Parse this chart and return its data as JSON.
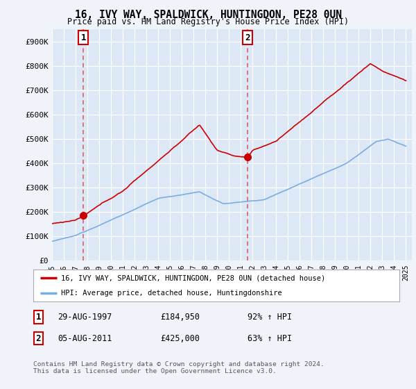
{
  "title": "16, IVY WAY, SPALDWICK, HUNTINGDON, PE28 0UN",
  "subtitle": "Price paid vs. HM Land Registry's House Price Index (HPI)",
  "background_color": "#f0f4fa",
  "plot_bg_color": "#dce8f5",
  "grid_color": "#ffffff",
  "ylim": [
    0,
    950000
  ],
  "yticks": [
    0,
    100000,
    200000,
    300000,
    400000,
    500000,
    600000,
    700000,
    800000,
    900000
  ],
  "ytick_labels": [
    "£0",
    "£100K",
    "£200K",
    "£300K",
    "£400K",
    "£500K",
    "£600K",
    "£700K",
    "£800K",
    "£900K"
  ],
  "sale1_year": 1997.66,
  "sale1_price": 184950,
  "sale2_year": 2011.59,
  "sale2_price": 425000,
  "sale1_label": "29-AUG-1997",
  "sale1_amount": "£184,950",
  "sale1_pct": "92% ↑ HPI",
  "sale2_label": "05-AUG-2011",
  "sale2_amount": "£425,000",
  "sale2_pct": "63% ↑ HPI",
  "legend_line1": "16, IVY WAY, SPALDWICK, HUNTINGDON, PE28 0UN (detached house)",
  "legend_line2": "HPI: Average price, detached house, Huntingdonshire",
  "footer": "Contains HM Land Registry data © Crown copyright and database right 2024.\nThis data is licensed under the Open Government Licence v3.0.",
  "hpi_color": "#7aade0",
  "price_color": "#cc0000",
  "vline_color": "#e05050"
}
